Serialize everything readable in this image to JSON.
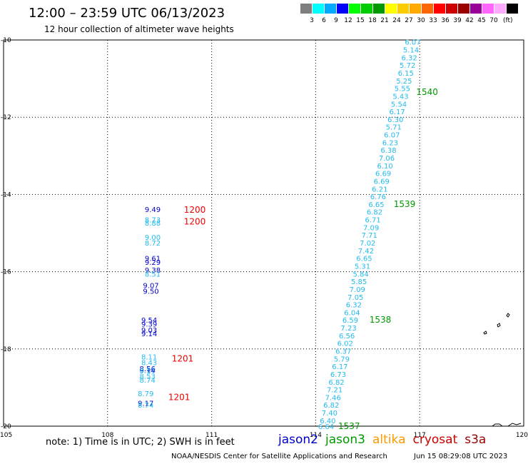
{
  "header": {
    "title": "12:00 – 23:59 UTC 06/13/2023",
    "subtitle": "12 hour collection of altimeter wave heights"
  },
  "legend": {
    "colors": [
      "#7f7f7f",
      "#00ffff",
      "#00aaff",
      "#0000ff",
      "#00ff00",
      "#00cc00",
      "#009900",
      "#ffff00",
      "#ffcc00",
      "#ffaa00",
      "#ff6600",
      "#ff0000",
      "#cc0000",
      "#990000",
      "#990099",
      "#ff66ff",
      "#ffaaff",
      "#000000"
    ],
    "labels": [
      "3",
      "6",
      "9",
      "12",
      "15",
      "18",
      "21",
      "24",
      "27",
      "30",
      "33",
      "36",
      "39",
      "42",
      "45",
      "70"
    ],
    "unit": "(ft)"
  },
  "axes": {
    "lon_labels": [
      "105",
      "108",
      "111",
      "114",
      "117",
      "120"
    ],
    "lat_labels": [
      "-10",
      "-12",
      "-14",
      "-16",
      "-18",
      "-20"
    ]
  },
  "footer": {
    "note": "note:  1) Time is in UTC;  2) SWH is in feet",
    "satellites": [
      {
        "name": "jason2",
        "color": "#0000cc"
      },
      {
        "name": "jason3",
        "color": "#009900"
      },
      {
        "name": "altika",
        "color": "#ff9900"
      },
      {
        "name": "cryosat",
        "color": "#cc0000"
      },
      {
        "name": "s3a",
        "color": "#990000"
      }
    ],
    "credit": "NOAA/NESDIS Center for Satellite Applications and Research",
    "timestamp": "Jun 15 08:29:08 UTC 2023"
  },
  "tracks": [
    {
      "color": "#22bbee",
      "points": [
        {
          "lon": 116.8,
          "lat": -10.05,
          "v": "6.07"
        },
        {
          "lon": 116.75,
          "lat": -10.25,
          "v": "5.14"
        },
        {
          "lon": 116.7,
          "lat": -10.45,
          "v": "6.32"
        },
        {
          "lon": 116.65,
          "lat": -10.65,
          "v": "5.72"
        },
        {
          "lon": 116.6,
          "lat": -10.85,
          "v": "6.15"
        },
        {
          "lon": 116.55,
          "lat": -11.05,
          "v": "5.25"
        },
        {
          "lon": 116.5,
          "lat": -11.25,
          "v": "5.55"
        },
        {
          "lon": 116.45,
          "lat": -11.45,
          "v": "5.43"
        },
        {
          "lon": 116.4,
          "lat": -11.65,
          "v": "5.54"
        },
        {
          "lon": 116.35,
          "lat": -11.85,
          "v": "6.17"
        },
        {
          "lon": 116.3,
          "lat": -12.05,
          "v": "6.30"
        },
        {
          "lon": 116.25,
          "lat": -12.25,
          "v": "5.71"
        },
        {
          "lon": 116.2,
          "lat": -12.45,
          "v": "6.07"
        },
        {
          "lon": 116.15,
          "lat": -12.65,
          "v": "6.23"
        },
        {
          "lon": 116.1,
          "lat": -12.85,
          "v": "6.38"
        },
        {
          "lon": 116.05,
          "lat": -13.05,
          "v": "7.06"
        },
        {
          "lon": 116.0,
          "lat": -13.25,
          "v": "6.10"
        },
        {
          "lon": 115.95,
          "lat": -13.45,
          "v": "6.69"
        },
        {
          "lon": 115.9,
          "lat": -13.65,
          "v": "6.69"
        },
        {
          "lon": 115.85,
          "lat": -13.85,
          "v": "6.21"
        },
        {
          "lon": 115.8,
          "lat": -14.05,
          "v": "6.76"
        },
        {
          "lon": 115.75,
          "lat": -14.25,
          "v": "6.65"
        },
        {
          "lon": 115.7,
          "lat": -14.45,
          "v": "6.82"
        },
        {
          "lon": 115.65,
          "lat": -14.65,
          "v": "6.71"
        },
        {
          "lon": 115.6,
          "lat": -14.85,
          "v": "7.09"
        },
        {
          "lon": 115.55,
          "lat": -15.05,
          "v": "7.71"
        },
        {
          "lon": 115.5,
          "lat": -15.25,
          "v": "7.02"
        },
        {
          "lon": 115.45,
          "lat": -15.45,
          "v": "7.42"
        },
        {
          "lon": 115.4,
          "lat": -15.65,
          "v": "6.65"
        },
        {
          "lon": 115.35,
          "lat": -15.85,
          "v": "5.31"
        },
        {
          "lon": 115.3,
          "lat": -16.05,
          "v": "5.84"
        },
        {
          "lon": 115.25,
          "lat": -16.25,
          "v": "5.85"
        },
        {
          "lon": 115.2,
          "lat": -16.45,
          "v": "7.09"
        },
        {
          "lon": 115.15,
          "lat": -16.65,
          "v": "7.05"
        },
        {
          "lon": 115.1,
          "lat": -16.85,
          "v": "6.32"
        },
        {
          "lon": 115.05,
          "lat": -17.05,
          "v": "6.04"
        },
        {
          "lon": 115.0,
          "lat": -17.25,
          "v": "6.59"
        },
        {
          "lon": 114.95,
          "lat": -17.45,
          "v": "7.23"
        },
        {
          "lon": 114.9,
          "lat": -17.65,
          "v": "6.56"
        },
        {
          "lon": 114.85,
          "lat": -17.85,
          "v": "6.02"
        },
        {
          "lon": 114.8,
          "lat": -18.05,
          "v": "6.37"
        },
        {
          "lon": 114.75,
          "lat": -18.25,
          "v": "5.79"
        },
        {
          "lon": 114.7,
          "lat": -18.45,
          "v": "6.17"
        },
        {
          "lon": 114.65,
          "lat": -18.65,
          "v": "6.73"
        },
        {
          "lon": 114.6,
          "lat": -18.85,
          "v": "6.82"
        },
        {
          "lon": 114.55,
          "lat": -19.05,
          "v": "7.21"
        },
        {
          "lon": 114.5,
          "lat": -19.25,
          "v": "7.46"
        },
        {
          "lon": 114.45,
          "lat": -19.45,
          "v": "6.82"
        },
        {
          "lon": 114.4,
          "lat": -19.65,
          "v": "7.40"
        },
        {
          "lon": 114.35,
          "lat": -19.85,
          "v": "6.40"
        },
        {
          "lon": 114.3,
          "lat": -20.0,
          "v": "6.64"
        }
      ]
    },
    {
      "color": "#0000cc",
      "points": [
        {
          "lon": 109.3,
          "lat": -14.38,
          "v": "9.49"
        },
        {
          "lon": 109.3,
          "lat": -15.65,
          "v": "9.61"
        },
        {
          "lon": 109.3,
          "lat": -15.75,
          "v": "9.29"
        },
        {
          "lon": 109.3,
          "lat": -15.95,
          "v": "9.38"
        },
        {
          "lon": 109.25,
          "lat": -16.35,
          "v": "9.07"
        },
        {
          "lon": 109.25,
          "lat": -16.5,
          "v": "9.50"
        },
        {
          "lon": 109.2,
          "lat": -17.25,
          "v": "9.54"
        },
        {
          "lon": 109.2,
          "lat": -17.35,
          "v": "9.39"
        },
        {
          "lon": 109.2,
          "lat": -17.5,
          "v": "9.03"
        },
        {
          "lon": 109.2,
          "lat": -17.6,
          "v": "9.14"
        },
        {
          "lon": 109.15,
          "lat": -18.5,
          "v": "8.56"
        },
        {
          "lon": 109.15,
          "lat": -18.55,
          "v": "9.14"
        },
        {
          "lon": 109.1,
          "lat": -19.4,
          "v": "9.17"
        }
      ]
    },
    {
      "color": "#22bbee",
      "points": [
        {
          "lon": 109.3,
          "lat": -14.65,
          "v": "8.73"
        },
        {
          "lon": 109.3,
          "lat": -14.73,
          "v": "8.88"
        },
        {
          "lon": 109.3,
          "lat": -15.1,
          "v": "9.00"
        },
        {
          "lon": 109.3,
          "lat": -15.25,
          "v": "8.72"
        },
        {
          "lon": 109.3,
          "lat": -16.05,
          "v": "8.51"
        },
        {
          "lon": 109.2,
          "lat": -18.2,
          "v": "8.11"
        },
        {
          "lon": 109.2,
          "lat": -18.35,
          "v": "8.43"
        },
        {
          "lon": 109.15,
          "lat": -18.55,
          "v": "8.57"
        },
        {
          "lon": 109.15,
          "lat": -18.7,
          "v": "8.53"
        },
        {
          "lon": 109.15,
          "lat": -18.8,
          "v": "8.74"
        },
        {
          "lon": 109.1,
          "lat": -19.15,
          "v": "8.79"
        },
        {
          "lon": 109.1,
          "lat": -19.45,
          "v": "8.74"
        }
      ]
    }
  ],
  "pass_labels": [
    {
      "lon": 116.9,
      "lat": -11.35,
      "v": "1540",
      "color": "#009900"
    },
    {
      "lon": 116.25,
      "lat": -14.25,
      "v": "1539",
      "color": "#009900"
    },
    {
      "lon": 115.55,
      "lat": -17.25,
      "v": "1538",
      "color": "#009900"
    },
    {
      "lon": 114.65,
      "lat": -20.0,
      "v": "1537",
      "color": "#009900"
    },
    {
      "lon": 110.2,
      "lat": -14.4,
      "v": "1200",
      "color": "#ee0000"
    },
    {
      "lon": 110.2,
      "lat": -14.7,
      "v": "1200",
      "color": "#ee0000"
    },
    {
      "lon": 109.85,
      "lat": -18.25,
      "v": "1201",
      "color": "#ee0000"
    },
    {
      "lon": 109.75,
      "lat": -19.25,
      "v": "1201",
      "color": "#ee0000"
    }
  ]
}
